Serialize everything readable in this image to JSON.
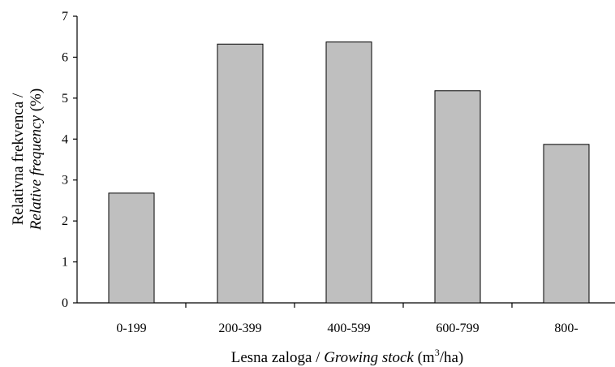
{
  "chart_data": {
    "type": "bar",
    "categories": [
      "0-199",
      "200-399",
      "400-599",
      "600-799",
      "800-"
    ],
    "values": [
      2.68,
      6.32,
      6.37,
      5.18,
      3.87
    ],
    "ylim": [
      0,
      7
    ],
    "yticks": [
      "0",
      "1",
      "2",
      "3",
      "4",
      "5",
      "6",
      "7"
    ],
    "xlabel": {
      "prefix": "Lesna zaloga / ",
      "italic": "Growing stock",
      "unit_pre": " (m",
      "unit_sup": "3",
      "unit_post": "/ha)"
    },
    "ylabel": {
      "line1": "Relativna frekvenca /",
      "line2_italic": "Relative frequency",
      "line2_rest": " (%)"
    },
    "bar_color": "#bfbfbf",
    "bar_stroke": "#000000",
    "grid": false,
    "legend": "none"
  }
}
